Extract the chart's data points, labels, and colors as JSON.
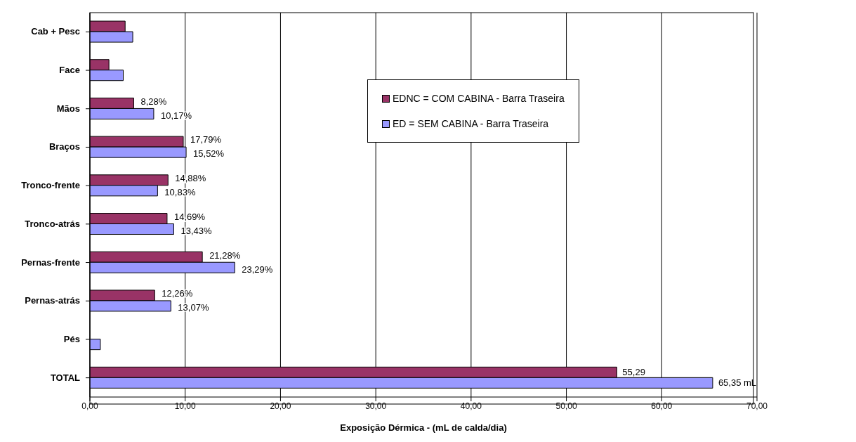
{
  "chart_data": {
    "type": "bar",
    "orientation": "horizontal",
    "xlabel": "Exposição Dérmica - (mL de calda/dia)",
    "categories": [
      "Cab + Pesc",
      "Face",
      "Mãos",
      "Braços",
      "Tronco-frente",
      "Tronco-atrás",
      "Pernas-frente",
      "Pernas-atrás",
      "Pés",
      "TOTAL"
    ],
    "series": [
      {
        "name": "EDNC = COM CABINA - Barra Traseira",
        "color": "#993366",
        "values": [
          3.7,
          2.0,
          4.6,
          9.8,
          8.2,
          8.1,
          11.8,
          6.8,
          0,
          55.29
        ],
        "value_labels": [
          null,
          null,
          null,
          null,
          null,
          null,
          null,
          null,
          null,
          "55,29"
        ]
      },
      {
        "name": "ED = SEM CABINA - Barra Traseira",
        "color": "#9999ff",
        "values": [
          4.5,
          3.5,
          6.7,
          10.1,
          7.1,
          8.8,
          15.2,
          8.5,
          1.1,
          65.35
        ],
        "value_labels": [
          null,
          null,
          null,
          null,
          null,
          null,
          null,
          null,
          null,
          "65,35 mL"
        ]
      }
    ],
    "annotations": [
      {
        "text": "8,28%",
        "x": 4.6,
        "y": "Mãos"
      },
      {
        "text": "10,17%",
        "x": 6.7,
        "y": "Mãos"
      },
      {
        "text": "17,79%",
        "x": 9.8,
        "y": "Braços"
      },
      {
        "text": "15,52%",
        "x": 10.1,
        "y": "Braços"
      },
      {
        "text": "14,88%",
        "x": 8.2,
        "y": "Tronco-frente"
      },
      {
        "text": "10,83%",
        "x": 7.1,
        "y": "Tronco-frente"
      },
      {
        "text": "14,69%",
        "x": 8.1,
        "y": "Tronco-atrás"
      },
      {
        "text": "13,43%",
        "x": 8.8,
        "y": "Tronco-atrás"
      },
      {
        "text": "21,28%",
        "x": 11.8,
        "y": "Pernas-frente"
      },
      {
        "text": "23,29%",
        "x": 15.2,
        "y": "Pernas-frente"
      },
      {
        "text": "12,26%",
        "x": 6.8,
        "y": "Pernas-atrás"
      },
      {
        "text": "13,07%",
        "x": 8.5,
        "y": "Pernas-atrás"
      }
    ],
    "xlim": [
      0,
      70
    ],
    "xticks": [
      {
        "value": 0,
        "label": "0,00"
      },
      {
        "value": 10,
        "label": "10,00"
      },
      {
        "value": 20,
        "label": "20,00"
      },
      {
        "value": 30,
        "label": "30,00"
      },
      {
        "value": 40,
        "label": "40,00"
      },
      {
        "value": 50,
        "label": "50,00"
      },
      {
        "value": 60,
        "label": "60,00"
      },
      {
        "value": 70,
        "label": "70,00"
      }
    ],
    "grid": "x",
    "legend": "top right"
  }
}
